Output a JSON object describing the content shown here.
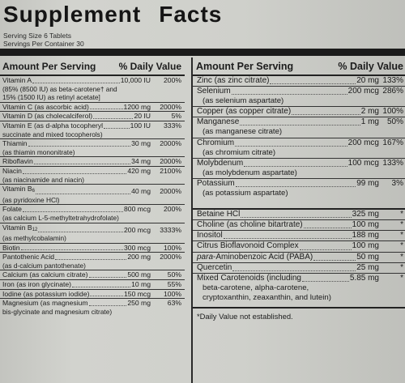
{
  "title_word1": "Supplement",
  "title_word2": "Facts",
  "serving_size": "Serving Size 6 Tablets",
  "servings_per_container": "Servings Per Container 30",
  "left_header": {
    "amount": "Amount Per Serving",
    "dv": "% Daily Value"
  },
  "right_header": {
    "amount": "Amount Per Serving",
    "dv": "% Daily Value"
  },
  "left_rows": [
    {
      "name": "Vitamin A",
      "amount": "10,000 IU",
      "dv": "200%"
    },
    {
      "sub": "(85% (8500 IU) as beta-carotene† and"
    },
    {
      "sub": "15% (1500 IU) as retinyl acetate]"
    },
    {
      "name": "Vitamin C (as ascorbic acid)",
      "amount": "1200 mg",
      "dv": "2000%"
    },
    {
      "name": "Vitamin D (as cholecalciferol)",
      "amount": "20 IU",
      "dv": "5%"
    },
    {
      "name": "Vitamin E (as d-alpha tocopheryl",
      "amount": "100 IU",
      "dv": "333%"
    },
    {
      "sub": "succinate and mixed tocopherols)"
    },
    {
      "name": "Thiamin",
      "amount": "30 mg",
      "dv": "2000%"
    },
    {
      "sub": "(as thiamin mononitrate)"
    },
    {
      "name": "Riboflavin",
      "amount": "34 mg",
      "dv": "2000%"
    },
    {
      "name": "Niacin",
      "amount": "420 mg",
      "dv": "2100%"
    },
    {
      "sub": "(as niacinamide and niacin)"
    },
    {
      "name": "Vitamin B",
      "name_sub": "6",
      "amount": "40 mg",
      "dv": "2000%"
    },
    {
      "sub": "(as pyridoxine HCl)"
    },
    {
      "name": "Folate",
      "amount": "800 mcg",
      "dv": "200%"
    },
    {
      "sub": "(as calcium L-5-methyltetrahydrofolate)"
    },
    {
      "name": "Vitamin B",
      "name_sub": "12",
      "amount": "200 mcg",
      "dv": "3333%"
    },
    {
      "sub": "(as methylcobalamin)"
    },
    {
      "name": "Biotin",
      "amount": "300 mcg",
      "dv": "100%"
    },
    {
      "name": "Pantothenic Acid",
      "amount": "200 mg",
      "dv": "2000%"
    },
    {
      "sub": "(as d-calcium pantothenate)"
    },
    {
      "name": "Calcium (as calcium citrate)",
      "amount": "500 mg",
      "dv": "50%"
    },
    {
      "name": "Iron (as iron glycinate)",
      "amount": "10 mg",
      "dv": "55%"
    },
    {
      "name": "Iodine (as potassium iodide)",
      "amount": "150 mcg",
      "dv": "100%"
    },
    {
      "name": "Magnesium (as magnesium",
      "amount": "250 mg",
      "dv": "63%"
    },
    {
      "sub": "bis-glycinate and magnesium citrate)"
    }
  ],
  "right_rows_a": [
    {
      "name": "Zinc (as zinc citrate)",
      "amount": "20 mg",
      "dv": "133%"
    },
    {
      "name": "Selenium",
      "amount": "200 mcg",
      "dv": "286%"
    },
    {
      "sub": "(as selenium aspartate)"
    },
    {
      "name": "Copper (as copper citrate)",
      "amount": "2 mg",
      "dv": "100%"
    },
    {
      "name": "Manganese",
      "amount": "1 mg",
      "dv": "50%"
    },
    {
      "sub": "(as manganese citrate)"
    },
    {
      "name": "Chromium",
      "amount": "200 mcg",
      "dv": "167%"
    },
    {
      "sub": "(as chromium citrate)"
    },
    {
      "name": "Molybdenum",
      "amount": "100 mcg",
      "dv": "133%"
    },
    {
      "sub": "(as molybdenum aspartate)"
    },
    {
      "name": "Potassium",
      "amount": "99 mg",
      "dv": "3%"
    },
    {
      "sub": "(as potassium aspartate)"
    }
  ],
  "right_rows_b": [
    {
      "name": "Betaine HCl",
      "amount": "325 mg",
      "dv": "*"
    },
    {
      "name": "Choline (as choline bitartrate)",
      "amount": "100 mg",
      "dv": "*"
    },
    {
      "name": "Inositol",
      "amount": "188 mg",
      "dv": "*"
    },
    {
      "name": "Citrus Bioflavonoid Complex",
      "amount": "100 mg",
      "dv": "*"
    },
    {
      "name_italic": "para",
      "name": "-Aminobenzoic Acid (PABA)",
      "amount": "50 mg",
      "dv": "*"
    },
    {
      "name": "Quercetin",
      "amount": "25 mg",
      "dv": "*"
    },
    {
      "name": "Mixed Carotenoids (including",
      "amount": "5.85 mg",
      "dv": "*"
    },
    {
      "sub": "beta-carotene, alpha-carotene,"
    },
    {
      "sub": "cryptoxanthin, zeaxanthin, and lutein)"
    }
  ],
  "footnote": "*Daily Value not established."
}
